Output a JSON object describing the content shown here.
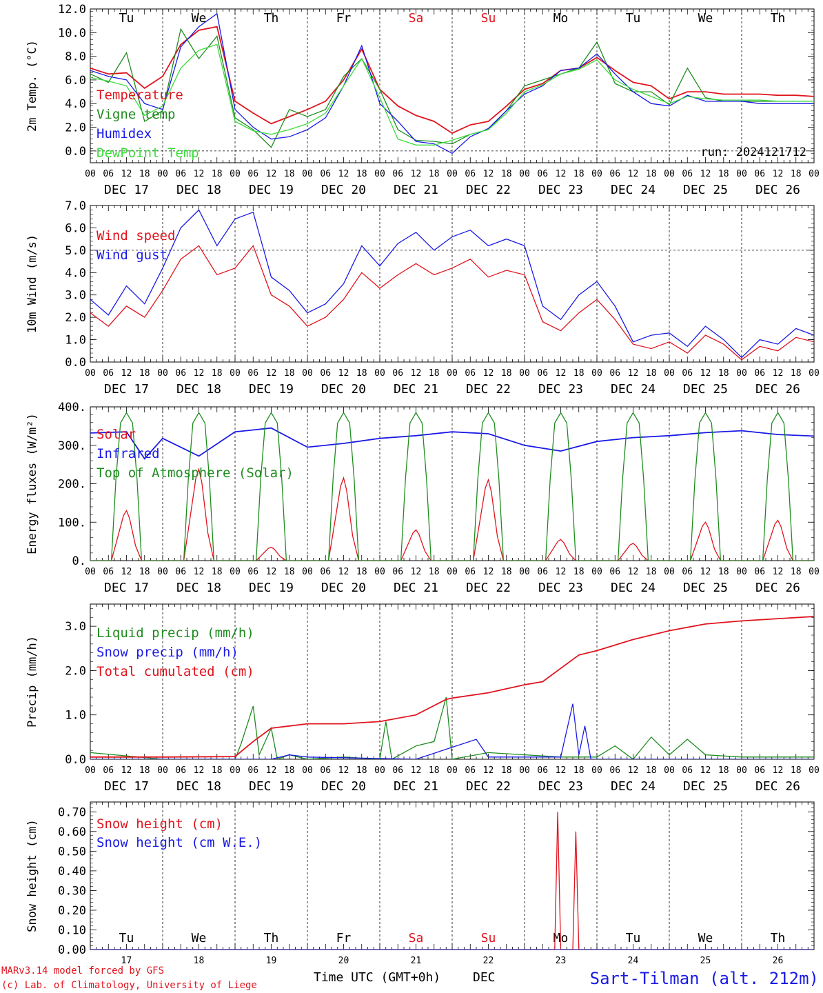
{
  "colors": {
    "red": "#e0141e",
    "green": "#1e8c1e",
    "blue": "#1a1ae6",
    "lightgreen": "#3cdc3c",
    "black": "#000000",
    "weekend": "#e0141e"
  },
  "days": [
    {
      "abbr": "Tu",
      "date": "DEC 17",
      "num": "17",
      "weekend": false
    },
    {
      "abbr": "We",
      "date": "DEC 18",
      "num": "18",
      "weekend": false
    },
    {
      "abbr": "Th",
      "date": "DEC 19",
      "num": "19",
      "weekend": false
    },
    {
      "abbr": "Fr",
      "date": "DEC 20",
      "num": "20",
      "weekend": false
    },
    {
      "abbr": "Sa",
      "date": "DEC 21",
      "num": "21",
      "weekend": true
    },
    {
      "abbr": "Su",
      "date": "DEC 22",
      "num": "22",
      "weekend": true
    },
    {
      "abbr": "Mo",
      "date": "DEC 23",
      "num": "23",
      "weekend": false
    },
    {
      "abbr": "Tu",
      "date": "DEC 24",
      "num": "24",
      "weekend": false
    },
    {
      "abbr": "We",
      "date": "DEC 25",
      "num": "25",
      "weekend": false
    },
    {
      "abbr": "Th",
      "date": "DEC 26",
      "num": "26",
      "weekend": false
    }
  ],
  "hour_labels": [
    "00",
    "06",
    "12",
    "18"
  ],
  "final_hour_label": "00",
  "footer": {
    "credit_line1": "MARv3.14 model forced by GFS",
    "credit_line2": "(c) Lab. of Climatology, University of Liege",
    "time_axis": "Time UTC (GMT+0h)",
    "month": "DEC",
    "station": "Sart-Tilman (alt. 212m)"
  },
  "chart_data": [
    {
      "type": "line",
      "ylabel": "2m Temp. (°C)",
      "yticks": [
        "0.0",
        "2.0",
        "4.0",
        "6.0",
        "8.0",
        "10.0",
        "12.0"
      ],
      "ylim": [
        -1.0,
        12.0
      ],
      "annotation": "run: 2024121712",
      "legend_position": "top-left",
      "x_hours": [
        0,
        6,
        12,
        18,
        24,
        30,
        36,
        42,
        48,
        54,
        60,
        66,
        72,
        78,
        84,
        90,
        96,
        102,
        108,
        114,
        120,
        126,
        132,
        138,
        144,
        150,
        156,
        162,
        168,
        174,
        180,
        186,
        192,
        198,
        204,
        210,
        216,
        222,
        228,
        234,
        240
      ],
      "series": [
        {
          "name": "Temperature",
          "color": "red",
          "values": [
            7.0,
            6.5,
            6.6,
            5.3,
            6.3,
            9.0,
            10.2,
            10.5,
            4.2,
            3.2,
            2.3,
            2.9,
            3.5,
            4.2,
            6.0,
            8.6,
            5.2,
            3.8,
            3.0,
            2.5,
            1.5,
            2.2,
            2.5,
            3.8,
            5.2,
            5.7,
            6.8,
            7.0,
            7.9,
            6.8,
            5.8,
            5.5,
            4.4,
            5.0,
            5.0,
            4.8,
            4.8,
            4.8,
            4.7,
            4.7,
            4.6
          ]
        },
        {
          "name": "Vigne temp",
          "color": "green",
          "values": [
            6.5,
            5.8,
            8.3,
            2.5,
            3.4,
            10.3,
            7.8,
            9.7,
            2.8,
            1.8,
            0.3,
            3.5,
            2.9,
            3.5,
            6.3,
            7.8,
            5.2,
            1.8,
            0.9,
            0.8,
            0.6,
            1.4,
            1.8,
            3.4,
            5.5,
            6.0,
            6.5,
            7.0,
            9.2,
            5.7,
            5.0,
            5.0,
            3.9,
            7.0,
            4.5,
            4.2,
            4.2,
            4.2,
            4.2,
            4.2,
            4.2
          ]
        },
        {
          "name": "Humidex",
          "color": "blue",
          "values": [
            6.8,
            6.3,
            6.0,
            4.0,
            3.5,
            8.8,
            10.5,
            11.6,
            3.5,
            2.0,
            1.0,
            1.2,
            1.8,
            2.8,
            5.5,
            8.9,
            4.0,
            2.5,
            0.8,
            0.6,
            -0.2,
            1.2,
            1.9,
            3.4,
            4.8,
            5.5,
            6.8,
            7.0,
            8.2,
            6.5,
            5.0,
            4.0,
            3.8,
            4.7,
            4.2,
            4.2,
            4.2,
            4.0,
            4.0,
            4.0,
            4.0
          ]
        },
        {
          "name": "DewPoint Temp",
          "color": "lightgreen",
          "values": [
            6.2,
            5.9,
            5.5,
            3.0,
            3.8,
            7.0,
            8.5,
            9.0,
            2.5,
            1.7,
            1.4,
            1.8,
            2.3,
            3.2,
            5.5,
            7.8,
            4.5,
            1.0,
            0.5,
            0.5,
            0.9,
            1.4,
            1.8,
            3.2,
            5.0,
            5.6,
            6.5,
            6.9,
            7.7,
            6.0,
            5.2,
            4.6,
            4.0,
            4.6,
            4.4,
            4.3,
            4.3,
            4.3,
            4.2,
            4.2,
            4.2
          ]
        }
      ]
    },
    {
      "type": "line",
      "ylabel": "10m Wind (m/s)",
      "yticks": [
        "0.0",
        "1.0",
        "2.0",
        "3.0",
        "4.0",
        "5.0",
        "6.0",
        "7.0"
      ],
      "ylim": [
        0.0,
        7.0
      ],
      "refline": 5.0,
      "legend_position": "top-left",
      "x_hours": [
        0,
        6,
        12,
        18,
        24,
        30,
        36,
        42,
        48,
        54,
        60,
        66,
        72,
        78,
        84,
        90,
        96,
        102,
        108,
        114,
        120,
        126,
        132,
        138,
        144,
        150,
        156,
        162,
        168,
        174,
        180,
        186,
        192,
        198,
        204,
        210,
        216,
        222,
        228,
        234,
        240
      ],
      "series": [
        {
          "name": "Wind speed",
          "color": "red",
          "values": [
            2.2,
            1.6,
            2.5,
            2.0,
            3.2,
            4.6,
            5.2,
            3.9,
            4.2,
            5.2,
            3.0,
            2.5,
            1.6,
            2.0,
            2.8,
            4.0,
            3.3,
            3.9,
            4.4,
            3.9,
            4.2,
            4.6,
            3.8,
            4.1,
            3.9,
            1.8,
            1.4,
            2.2,
            2.8,
            1.9,
            0.8,
            0.6,
            0.9,
            0.4,
            1.2,
            0.8,
            0.1,
            0.7,
            0.5,
            1.1,
            0.9
          ]
        },
        {
          "name": "Wind gust",
          "color": "blue",
          "values": [
            2.8,
            2.1,
            3.4,
            2.6,
            4.2,
            6.0,
            6.8,
            5.2,
            6.4,
            6.7,
            3.8,
            3.2,
            2.2,
            2.6,
            3.5,
            5.2,
            4.3,
            5.3,
            5.8,
            5.0,
            5.6,
            5.9,
            5.2,
            5.5,
            5.2,
            2.5,
            1.9,
            3.0,
            3.6,
            2.5,
            0.9,
            1.2,
            1.3,
            0.7,
            1.6,
            1.0,
            0.2,
            1.0,
            0.8,
            1.5,
            1.2
          ]
        }
      ]
    },
    {
      "type": "line",
      "ylabel": "Energy fluxes (W/m²)",
      "yticks": [
        "0.",
        "100.",
        "200.",
        "300.",
        "400."
      ],
      "ylim": [
        0,
        400
      ],
      "legend_position": "top-left",
      "x_hours": [
        0,
        6,
        8,
        10,
        12,
        14,
        16,
        18,
        24
      ],
      "daily_peak_hour": 12,
      "series": [
        {
          "name": "Solar",
          "color": "red",
          "daily_peaks": [
            130,
            238,
            35,
            215,
            80,
            210,
            55,
            45,
            100,
            105
          ]
        },
        {
          "name": "Infrared",
          "color": "blue",
          "x_hours": [
            0,
            12,
            18,
            24,
            36,
            48,
            54,
            60,
            72,
            84,
            96,
            108,
            120,
            132,
            144,
            156,
            168,
            180,
            192,
            204,
            216,
            228,
            240
          ],
          "values": [
            332,
            335,
            265,
            318,
            272,
            335,
            340,
            345,
            295,
            305,
            318,
            325,
            335,
            330,
            300,
            285,
            310,
            320,
            325,
            333,
            338,
            328,
            324
          ]
        },
        {
          "name": "Top of Atmosphere (Solar)",
          "color": "green",
          "daily_peak": 385,
          "daylight_hours": [
            7,
            17
          ]
        }
      ]
    },
    {
      "type": "line",
      "ylabel": "Precip (mm/h)",
      "yticks": [
        "0.0",
        "1.0",
        "2.0",
        "3.0"
      ],
      "ylim": [
        0.0,
        3.5
      ],
      "legend_position": "top-left",
      "x_hours": [
        0,
        24,
        48,
        54,
        60,
        66,
        72,
        84,
        96,
        108,
        118,
        120,
        132,
        144,
        150,
        156,
        162,
        168,
        180,
        192,
        204,
        216,
        240
      ],
      "series": [
        {
          "name": "Liquid precip (mm/h)",
          "color": "green",
          "x_hours": [
            0,
            24,
            48,
            50,
            54,
            56,
            60,
            62,
            66,
            72,
            84,
            96,
            98,
            100,
            108,
            114,
            118,
            120,
            132,
            144,
            156,
            162,
            168,
            174,
            180,
            186,
            192,
            198,
            204,
            216,
            240
          ],
          "values": [
            0.15,
            0.0,
            0.0,
            0.35,
            1.2,
            0.1,
            0.7,
            0.0,
            0.1,
            0.0,
            0.05,
            0.0,
            0.85,
            0.0,
            0.3,
            0.4,
            1.4,
            0.0,
            0.15,
            0.1,
            0.05,
            0.05,
            0.05,
            0.3,
            0.0,
            0.5,
            0.1,
            0.45,
            0.1,
            0.05,
            0.05
          ]
        },
        {
          "name": "Snow precip (mm/h)",
          "color": "blue",
          "x_hours": [
            0,
            60,
            66,
            72,
            108,
            128,
            132,
            156,
            160,
            162,
            164,
            166,
            180,
            240
          ],
          "values": [
            0.0,
            0.0,
            0.1,
            0.05,
            0.0,
            0.45,
            0.05,
            0.05,
            1.25,
            0.1,
            0.75,
            0.0,
            0.0,
            0.0
          ]
        },
        {
          "name": "Total cumulated (cm)",
          "color": "red",
          "values": [
            0.05,
            0.05,
            0.06,
            0.4,
            0.7,
            0.75,
            0.8,
            0.8,
            0.85,
            1.0,
            1.35,
            1.38,
            1.5,
            1.68,
            1.75,
            2.05,
            2.35,
            2.45,
            2.7,
            2.9,
            3.05,
            3.12,
            3.22
          ]
        }
      ]
    },
    {
      "type": "line",
      "ylabel": "Snow height (cm)",
      "yticks": [
        "0.00",
        "0.10",
        "0.20",
        "0.30",
        "0.40",
        "0.50",
        "0.60",
        "0.70"
      ],
      "ylim": [
        0.0,
        0.75
      ],
      "legend_position": "top-left",
      "x_hours": [
        0,
        154,
        155,
        156,
        157,
        160,
        161,
        162,
        163,
        240
      ],
      "series": [
        {
          "name": "Snow height (cm)",
          "color": "red",
          "values": [
            0.0,
            0.0,
            0.7,
            0.0,
            0.0,
            0.0,
            0.6,
            0.0,
            0.0,
            0.0
          ]
        },
        {
          "name": "Snow height (cm W.E.)",
          "color": "blue",
          "values": [
            0.0,
            0.0,
            0.0,
            0.0,
            0.0,
            0.0,
            0.0,
            0.0,
            0.0,
            0.0
          ]
        }
      ]
    }
  ]
}
